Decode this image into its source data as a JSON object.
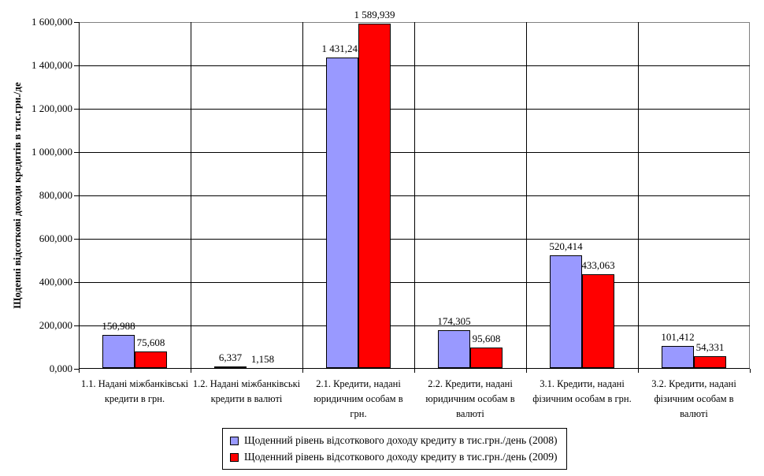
{
  "chart_data": {
    "type": "bar",
    "title": "",
    "ylabel": "Щоденні відсоткові доходи кредитів в тис.грн./де",
    "xlabel": "",
    "ylim": [
      0,
      1600
    ],
    "ytick_step": 200,
    "ytick_labels": [
      "0,000",
      "200,000",
      "400,000",
      "600,000",
      "800,000",
      "1 000,000",
      "1 200,000",
      "1 400,000",
      "1 600,000"
    ],
    "grid": true,
    "legend_position": "bottom",
    "categories": [
      {
        "label": "1.1. Надані міжбанківські кредити в грн.",
        "lines": [
          "1.1. Надані міжбанківські",
          "кредити в грн."
        ]
      },
      {
        "label": "1.2. Надані міжбанківські кредити в валюті",
        "lines": [
          "1.2. Надані міжбанківські",
          "кредити в валюті"
        ]
      },
      {
        "label": "2.1. Кредити, надані юридичним особам в грн.",
        "lines": [
          "2.1. Кредити, надані",
          "юридичним особам в",
          "грн."
        ]
      },
      {
        "label": "2.2. Кредити, надані юридичним особам в валюті",
        "lines": [
          "2.2. Кредити, надані",
          "юридичним особам в",
          "валюті"
        ]
      },
      {
        "label": "3.1. Кредити, надані фізичним особам в грн.",
        "lines": [
          "3.1. Кредити, надані",
          "фізичним особам  в грн."
        ]
      },
      {
        "label": "3.2. Кредити, надані фізичним особам в валюті",
        "lines": [
          "3.2. Кредити, надані",
          "фізичним особам  в",
          "валюті"
        ]
      }
    ],
    "series": [
      {
        "name": "Щоденний рівень відсоткового доходу кредиту в тис.грн./день (2008)",
        "color": "#9999FF",
        "values": [
          150.988,
          6.337,
          1431.245,
          174.305,
          520.414,
          101.412
        ],
        "value_labels": [
          "150,988",
          "6,337",
          "1 431,245",
          "174,305",
          "520,414",
          "101,412"
        ]
      },
      {
        "name": "Щоденний рівень відсоткового доходу кредиту в тис.грн./день (2009)",
        "color": "#FF0000",
        "values": [
          75.608,
          1.158,
          1589.939,
          95.608,
          433.063,
          54.331
        ],
        "value_labels": [
          "75,608",
          "1,158",
          "1 589,939",
          "95,608",
          "433,063",
          "54,331"
        ]
      }
    ],
    "colors": {
      "gridline": "#000000",
      "plot_border": "#808080",
      "axis": "#000000"
    }
  }
}
